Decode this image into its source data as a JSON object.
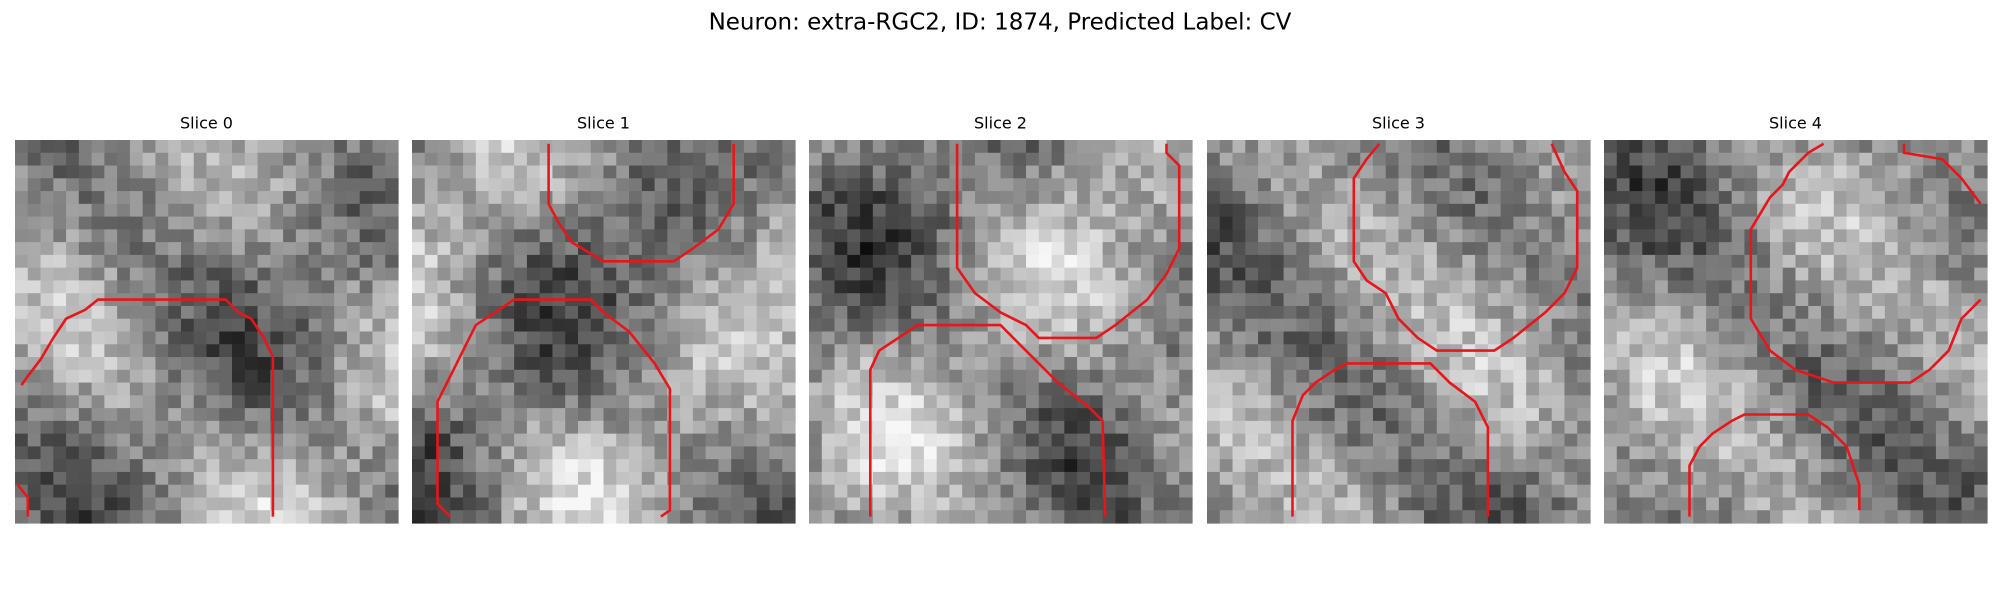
{
  "title": "Neuron: extra-RGC2, ID: 1874, Predicted Label: CV",
  "panels": [
    {
      "title": "Slice 0"
    },
    {
      "title": "Slice 1"
    },
    {
      "title": "Slice 2"
    },
    {
      "title": "Slice 3"
    },
    {
      "title": "Slice 4"
    }
  ]
}
